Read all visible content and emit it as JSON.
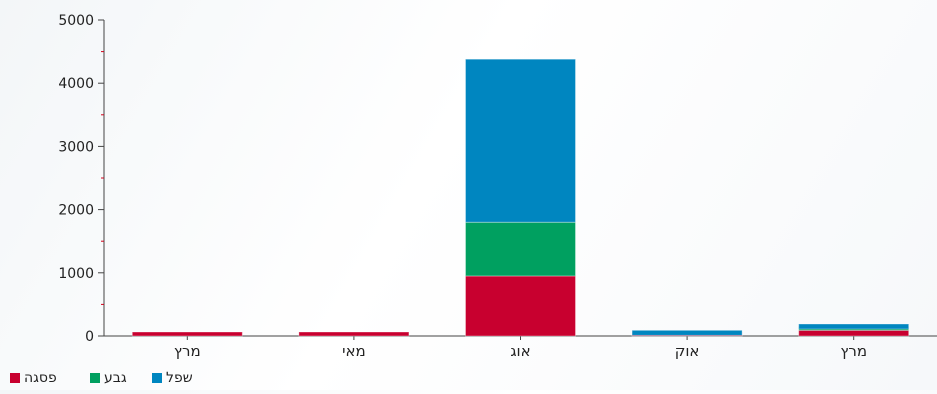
{
  "chart_data": {
    "type": "bar",
    "stacked": true,
    "categories": [
      "מרץ",
      "מאי",
      "אוג",
      "אוק",
      "מרץ"
    ],
    "series": [
      {
        "name": "פסגה",
        "color": "#c8002f",
        "values": [
          30,
          30,
          950,
          10,
          90
        ]
      },
      {
        "name": "גבע",
        "color": "#00a060",
        "values": [
          0,
          0,
          850,
          0,
          20
        ]
      },
      {
        "name": "שפל",
        "color": "#0086c0",
        "values": [
          0,
          0,
          2580,
          80,
          80
        ]
      }
    ],
    "ylim": [
      0,
      5000
    ],
    "yticks": [
      "0",
      "1000",
      "2000",
      "3000",
      "4000",
      "5000"
    ],
    "grid": false,
    "legend_position": "bottom-left"
  }
}
